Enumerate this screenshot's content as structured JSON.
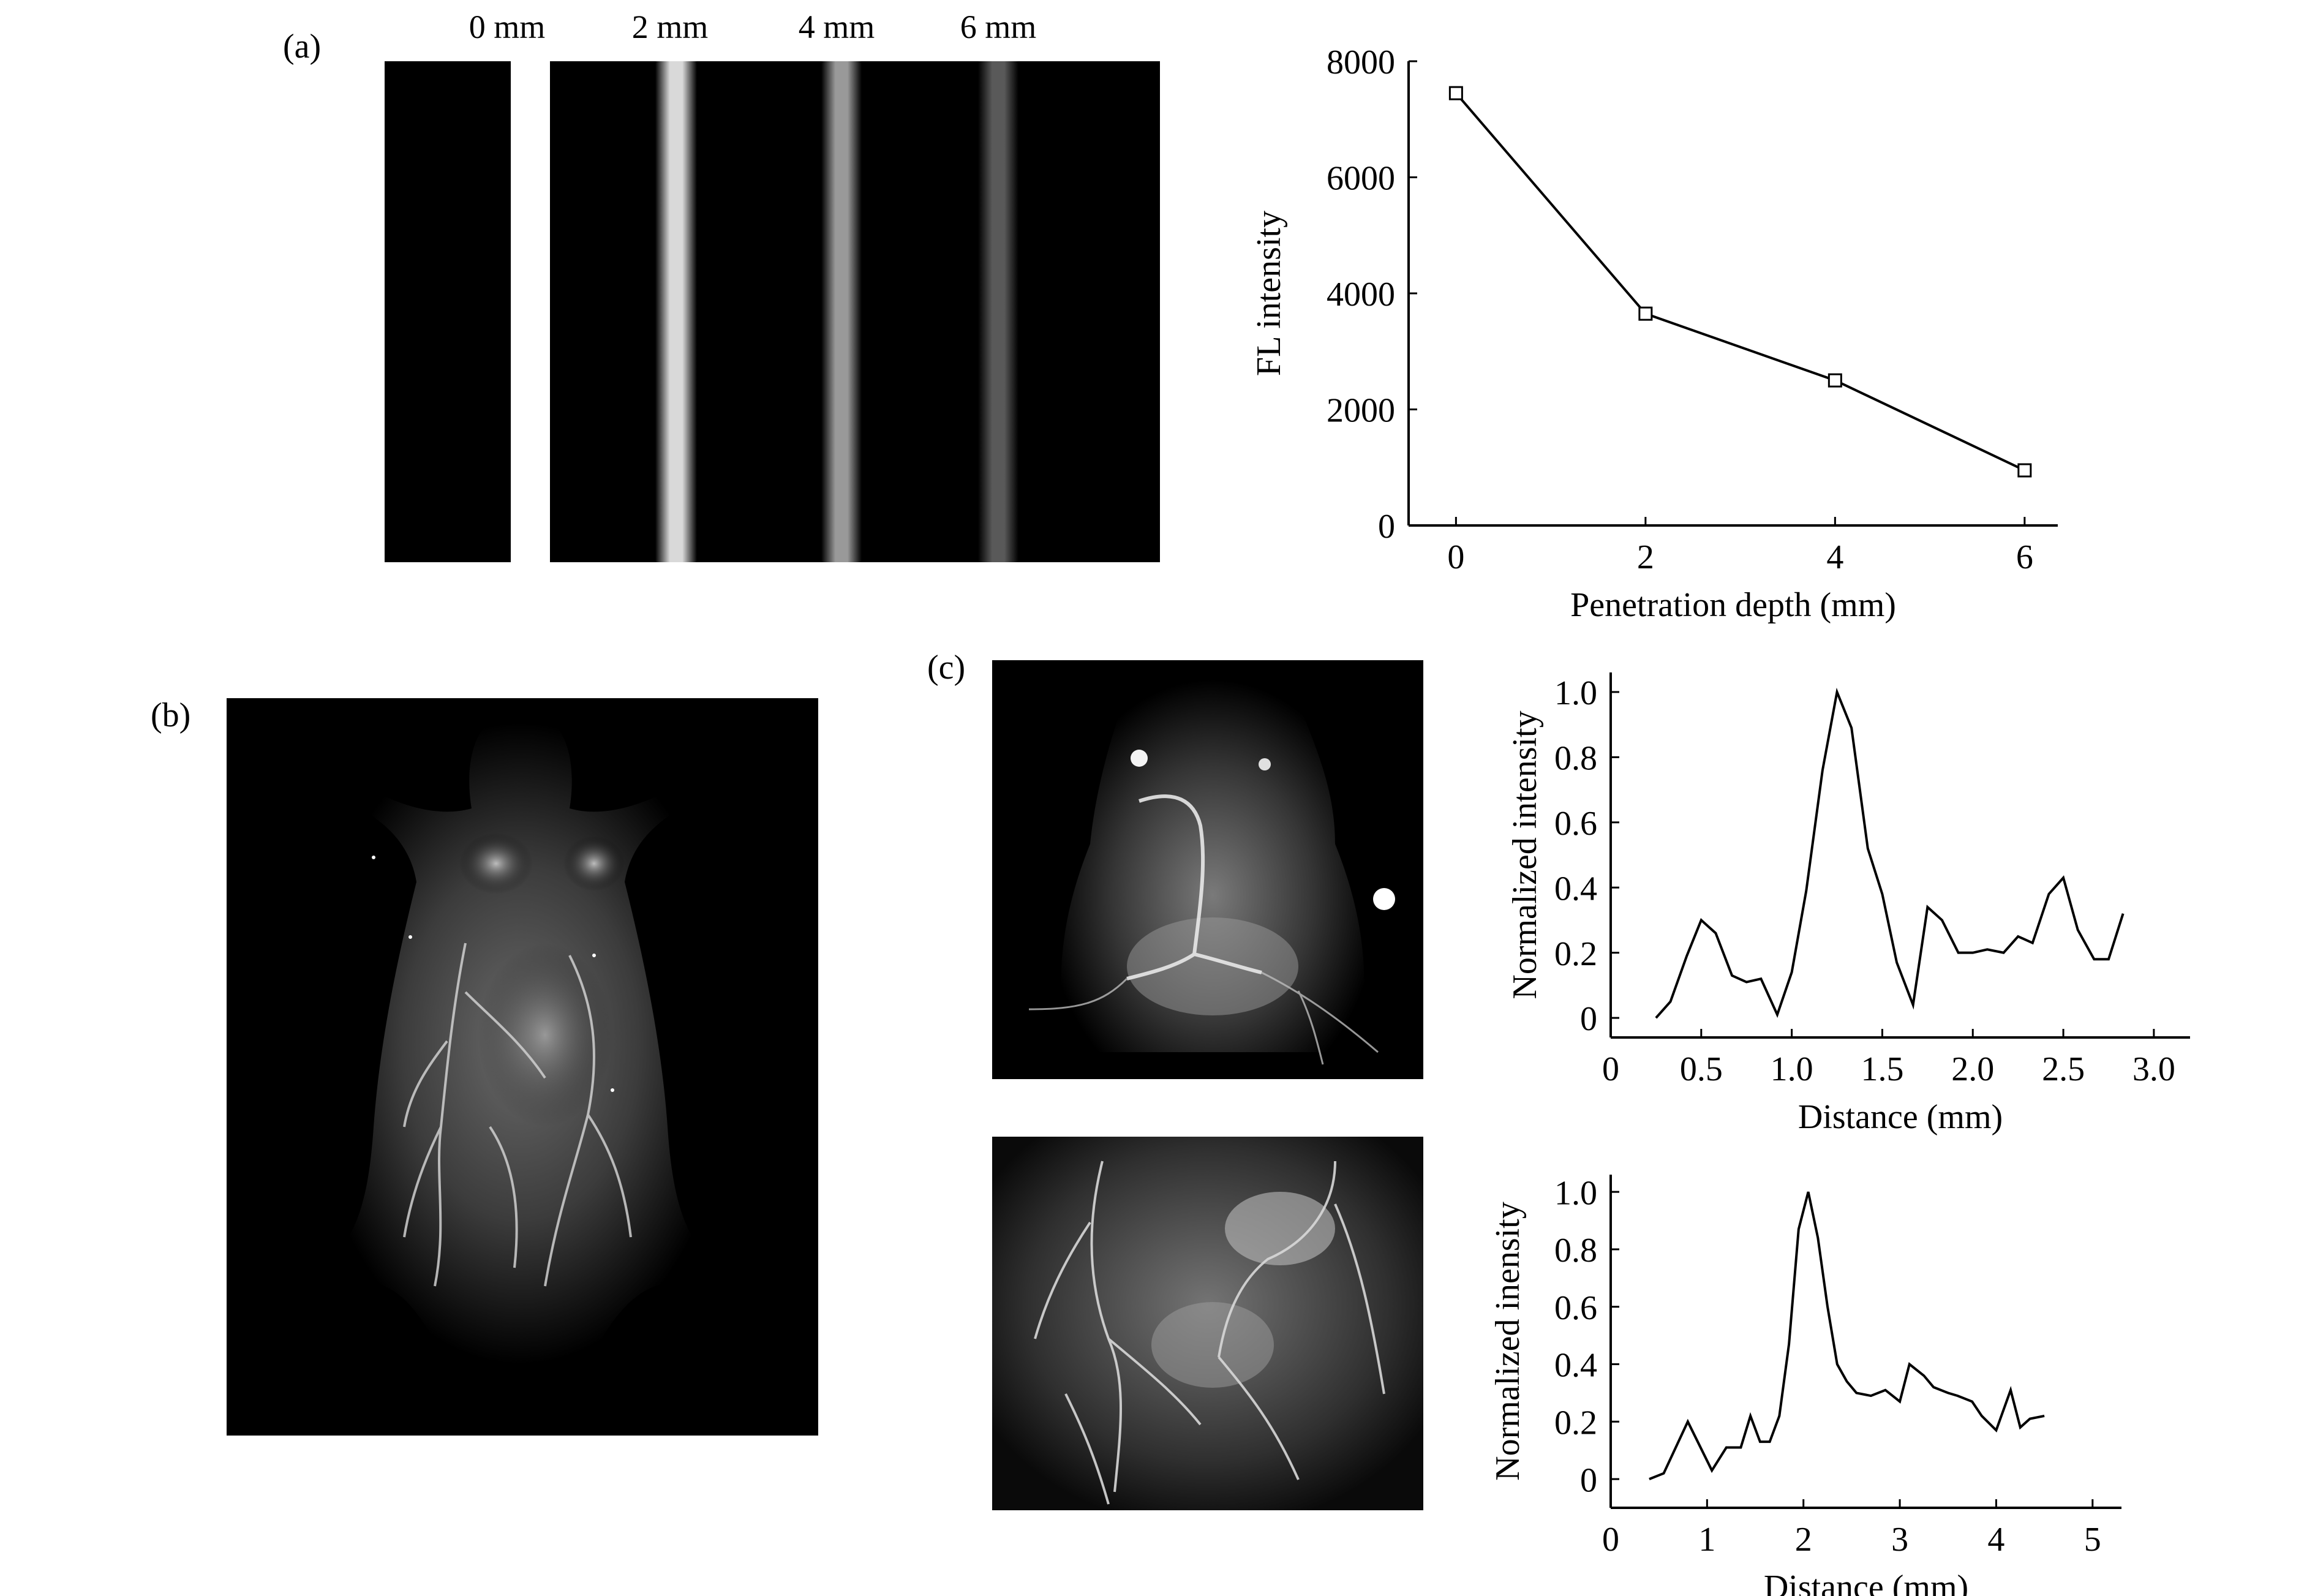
{
  "panel_labels": {
    "a": "(a)",
    "b": "(b)",
    "c": "(c)"
  },
  "phantom": {
    "lane_labels": [
      "0 mm",
      "2 mm",
      "4 mm",
      "6 mm"
    ],
    "lane_brightness": [
      1.0,
      0.85,
      0.6,
      0.35
    ]
  },
  "chart_data": [
    {
      "type": "line",
      "xlabel": "Penetration depth (mm)",
      "ylabel": "FL intensity",
      "x": [
        0,
        2,
        4,
        6
      ],
      "values": [
        7450,
        3650,
        2500,
        950
      ],
      "xlim": [
        -0.5,
        6.35
      ],
      "ylim": [
        0,
        8000
      ],
      "xticks": [
        "0",
        "2",
        "4",
        "6"
      ],
      "yticks": [
        "0",
        "2000",
        "4000",
        "6000",
        "8000"
      ],
      "marker": "open-square",
      "grid": false
    },
    {
      "type": "line",
      "xlabel": "Distance (mm)",
      "ylabel": "Normalized intensity",
      "x": [
        0.25,
        0.33,
        0.42,
        0.5,
        0.58,
        0.67,
        0.75,
        0.83,
        0.92,
        1.0,
        1.08,
        1.17,
        1.25,
        1.33,
        1.42,
        1.5,
        1.58,
        1.67,
        1.75,
        1.83,
        1.92,
        2.0,
        2.08,
        2.17,
        2.25,
        2.33,
        2.42,
        2.5,
        2.58,
        2.67,
        2.75,
        2.83
      ],
      "values": [
        0.0,
        0.05,
        0.19,
        0.3,
        0.26,
        0.13,
        0.11,
        0.12,
        0.01,
        0.14,
        0.39,
        0.76,
        1.0,
        0.89,
        0.52,
        0.38,
        0.17,
        0.04,
        0.34,
        0.3,
        0.2,
        0.2,
        0.21,
        0.2,
        0.25,
        0.23,
        0.38,
        0.43,
        0.27,
        0.18,
        0.18,
        0.32
      ],
      "xlim": [
        0,
        3.2
      ],
      "ylim": [
        -0.06,
        1.06
      ],
      "xticks": [
        "0",
        "0.5",
        "1.0",
        "1.5",
        "2.0",
        "2.5",
        "3.0"
      ],
      "yticks": [
        "0",
        "0.2",
        "0.4",
        "0.6",
        "0.8",
        "1.0"
      ],
      "grid": false
    },
    {
      "type": "line",
      "xlabel": "Distance (mm)",
      "ylabel": "Normalized inensity",
      "x": [
        0.4,
        0.55,
        0.8,
        1.05,
        1.2,
        1.35,
        1.45,
        1.55,
        1.65,
        1.75,
        1.85,
        1.95,
        2.05,
        2.15,
        2.25,
        2.35,
        2.45,
        2.55,
        2.7,
        2.85,
        3.0,
        3.1,
        3.25,
        3.35,
        3.5,
        3.6,
        3.75,
        3.85,
        4.0,
        4.15,
        4.25,
        4.35,
        4.5
      ],
      "values": [
        0.0,
        0.02,
        0.2,
        0.03,
        0.11,
        0.11,
        0.22,
        0.13,
        0.13,
        0.22,
        0.47,
        0.87,
        1.0,
        0.84,
        0.6,
        0.4,
        0.34,
        0.3,
        0.29,
        0.31,
        0.27,
        0.4,
        0.36,
        0.32,
        0.3,
        0.29,
        0.27,
        0.22,
        0.17,
        0.31,
        0.18,
        0.21,
        0.22
      ],
      "xlim": [
        0,
        5.3
      ],
      "ylim": [
        -0.1,
        1.06
      ],
      "xticks": [
        "0",
        "1",
        "2",
        "3",
        "4",
        "5"
      ],
      "yticks": [
        "0",
        "0.2",
        "0.4",
        "0.6",
        "0.8",
        "1.0"
      ],
      "grid": false
    }
  ]
}
